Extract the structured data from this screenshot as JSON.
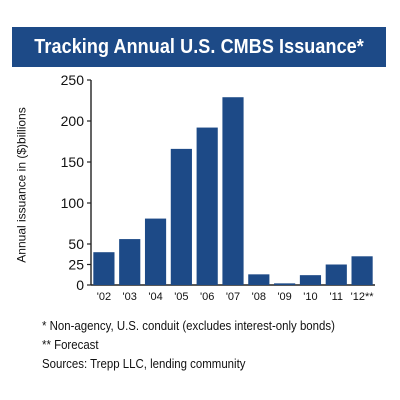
{
  "title": "Tracking Annual U.S. CMBS Issuance*",
  "notes": {
    "non_agency": "* Non-agency, U.S. conduit (excludes interest-only bonds)",
    "forecast": "** Forecast",
    "sources": "Sources: Trepp LLC, lending community"
  },
  "colors": {
    "banner": "#1d4a87",
    "bar": "#1d4a87",
    "axis": "#222222"
  },
  "chart_data": {
    "type": "bar",
    "title": "Tracking Annual U.S. CMBS Issuance*",
    "xlabel": "",
    "ylabel": "Annual issuance in ($)billions",
    "categories": [
      "'02",
      "'03",
      "'04",
      "'05",
      "'06",
      "'07",
      "'08",
      "'09",
      "'10",
      "'11",
      "'12**"
    ],
    "values": [
      40,
      56,
      81,
      166,
      192,
      229,
      13,
      2,
      12,
      25,
      35
    ],
    "ylim": [
      0,
      250
    ],
    "yticks": [
      0,
      25,
      50,
      100,
      150,
      200,
      250
    ],
    "grid": false,
    "legend": "none"
  }
}
